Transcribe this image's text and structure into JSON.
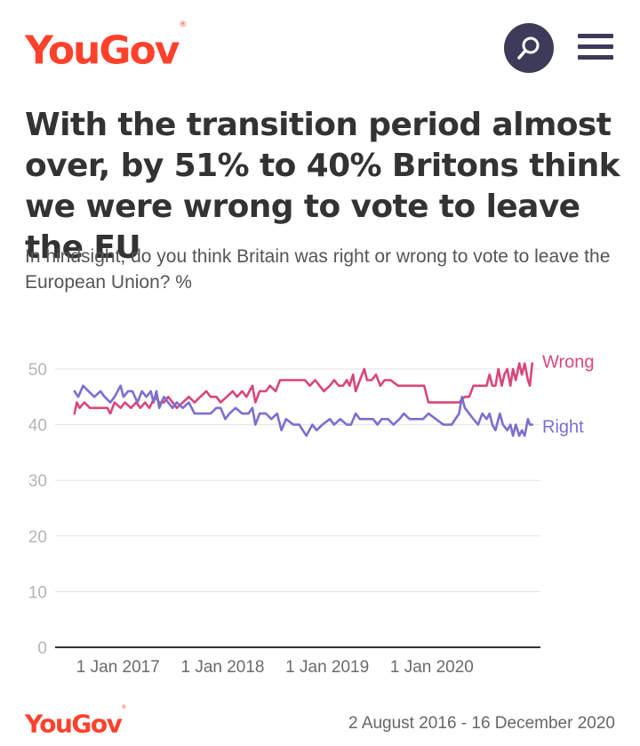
{
  "header": {
    "logo_text": "YouGov",
    "logo_mark": "®",
    "search_icon": "search-icon",
    "menu_icon": "hamburger-menu-icon"
  },
  "title": "With the transition period almost over, by 51% to 40% Britons think we were wrong to vote to leave the EU",
  "subtitle": "In hindsight, do you think Britain was right or wrong to vote to leave the European Union? %",
  "footer": {
    "logo_text": "YouGov",
    "logo_mark": "®",
    "date_range": "2 August 2016 - 16 December 2020"
  },
  "colors": {
    "brand": "#ff412c",
    "icon_bg": "#3e3a5a",
    "wrong": "#d9467b",
    "right": "#7b6fd0"
  },
  "chart_data": {
    "type": "line",
    "ylim": [
      0,
      50
    ],
    "yticks": [
      "0",
      "10",
      "20",
      "30",
      "40",
      "50"
    ],
    "xticks": [
      "1 Jan 2017",
      "1 Jan 2018",
      "1 Jan 2019",
      "1 Jan 2020"
    ],
    "xtick_dates": [
      "2017-01-01",
      "2018-01-01",
      "2019-01-01",
      "2020-01-01"
    ],
    "x_range": [
      "2016-08-02",
      "2020-12-16"
    ],
    "grid": true,
    "series": [
      {
        "name": "Wrong",
        "color": "#d9467b",
        "points": [
          [
            "2016-08-02",
            42
          ],
          [
            "2016-08-10",
            44
          ],
          [
            "2016-08-20",
            43
          ],
          [
            "2016-09-05",
            44
          ],
          [
            "2016-09-25",
            43
          ],
          [
            "2016-10-15",
            43
          ],
          [
            "2016-11-10",
            43
          ],
          [
            "2016-11-25",
            43
          ],
          [
            "2016-12-05",
            42
          ],
          [
            "2016-12-20",
            44
          ],
          [
            "2017-01-10",
            43
          ],
          [
            "2017-01-25",
            44
          ],
          [
            "2017-02-15",
            43
          ],
          [
            "2017-03-05",
            44
          ],
          [
            "2017-03-20",
            43
          ],
          [
            "2017-04-05",
            44
          ],
          [
            "2017-04-20",
            43
          ],
          [
            "2017-05-10",
            45
          ],
          [
            "2017-05-25",
            44
          ],
          [
            "2017-06-10",
            44
          ],
          [
            "2017-06-25",
            45
          ],
          [
            "2017-07-10",
            44
          ],
          [
            "2017-07-25",
            43
          ],
          [
            "2017-08-15",
            44
          ],
          [
            "2017-09-05",
            45
          ],
          [
            "2017-09-25",
            44
          ],
          [
            "2017-10-15",
            45
          ],
          [
            "2017-11-05",
            46
          ],
          [
            "2017-11-20",
            45
          ],
          [
            "2017-12-10",
            45
          ],
          [
            "2017-12-25",
            44
          ],
          [
            "2018-01-15",
            45
          ],
          [
            "2018-02-05",
            46
          ],
          [
            "2018-02-20",
            45
          ],
          [
            "2018-03-10",
            46
          ],
          [
            "2018-03-25",
            45
          ],
          [
            "2018-04-15",
            47
          ],
          [
            "2018-04-25",
            44
          ],
          [
            "2018-05-10",
            46
          ],
          [
            "2018-06-01",
            46
          ],
          [
            "2018-06-15",
            47
          ],
          [
            "2018-07-05",
            46
          ],
          [
            "2018-07-20",
            48
          ],
          [
            "2018-08-05",
            48
          ],
          [
            "2018-08-25",
            48
          ],
          [
            "2018-09-20",
            48
          ],
          [
            "2018-10-15",
            48
          ],
          [
            "2018-11-01",
            47
          ],
          [
            "2018-11-20",
            48
          ],
          [
            "2018-12-05",
            47
          ],
          [
            "2018-12-20",
            46
          ],
          [
            "2019-01-10",
            47
          ],
          [
            "2019-01-25",
            48
          ],
          [
            "2019-02-10",
            47
          ],
          [
            "2019-02-25",
            47
          ],
          [
            "2019-03-10",
            48
          ],
          [
            "2019-03-20",
            47
          ],
          [
            "2019-04-01",
            49
          ],
          [
            "2019-04-10",
            46
          ],
          [
            "2019-04-25",
            48
          ],
          [
            "2019-05-10",
            50
          ],
          [
            "2019-05-20",
            48
          ],
          [
            "2019-06-05",
            48
          ],
          [
            "2019-06-20",
            49
          ],
          [
            "2019-07-05",
            47
          ],
          [
            "2019-07-20",
            48
          ],
          [
            "2019-08-10",
            48
          ],
          [
            "2019-09-05",
            47
          ],
          [
            "2019-09-25",
            47
          ],
          [
            "2019-10-20",
            47
          ],
          [
            "2019-11-15",
            47
          ],
          [
            "2019-12-05",
            47
          ],
          [
            "2019-12-20",
            44
          ],
          [
            "2020-01-25",
            44
          ],
          [
            "2020-02-20",
            44
          ],
          [
            "2020-03-20",
            44
          ],
          [
            "2020-04-05",
            44
          ],
          [
            "2020-04-25",
            45
          ],
          [
            "2020-05-10",
            45
          ],
          [
            "2020-05-25",
            47
          ],
          [
            "2020-06-10",
            47
          ],
          [
            "2020-06-25",
            47
          ],
          [
            "2020-07-10",
            47
          ],
          [
            "2020-07-20",
            49
          ],
          [
            "2020-07-30",
            47
          ],
          [
            "2020-08-10",
            47
          ],
          [
            "2020-08-20",
            50
          ],
          [
            "2020-09-01",
            47
          ],
          [
            "2020-09-10",
            49
          ],
          [
            "2020-09-20",
            50
          ],
          [
            "2020-10-01",
            47
          ],
          [
            "2020-10-10",
            50
          ],
          [
            "2020-10-20",
            48
          ],
          [
            "2020-11-01",
            51
          ],
          [
            "2020-11-10",
            49
          ],
          [
            "2020-11-20",
            51
          ],
          [
            "2020-12-01",
            48
          ],
          [
            "2020-12-08",
            47
          ],
          [
            "2020-12-16",
            51
          ]
        ]
      },
      {
        "name": "Right",
        "color": "#7b6fd0",
        "points": [
          [
            "2016-08-02",
            46
          ],
          [
            "2016-08-15",
            45
          ],
          [
            "2016-09-01",
            47
          ],
          [
            "2016-09-20",
            46
          ],
          [
            "2016-10-10",
            45
          ],
          [
            "2016-11-01",
            46
          ],
          [
            "2016-11-15",
            45
          ],
          [
            "2016-12-05",
            44
          ],
          [
            "2016-12-20",
            45
          ],
          [
            "2017-01-10",
            47
          ],
          [
            "2017-01-20",
            45
          ],
          [
            "2017-02-05",
            46
          ],
          [
            "2017-02-20",
            46
          ],
          [
            "2017-03-10",
            44
          ],
          [
            "2017-03-25",
            46
          ],
          [
            "2017-04-10",
            45
          ],
          [
            "2017-04-25",
            46
          ],
          [
            "2017-05-05",
            44
          ],
          [
            "2017-05-15",
            46
          ],
          [
            "2017-05-25",
            43
          ],
          [
            "2017-06-10",
            45
          ],
          [
            "2017-06-25",
            44
          ],
          [
            "2017-07-10",
            43
          ],
          [
            "2017-07-25",
            44
          ],
          [
            "2017-08-15",
            43
          ],
          [
            "2017-09-05",
            44
          ],
          [
            "2017-09-25",
            42
          ],
          [
            "2017-10-20",
            42
          ],
          [
            "2017-11-20",
            42
          ],
          [
            "2017-12-10",
            43
          ],
          [
            "2017-12-25",
            43
          ],
          [
            "2018-01-10",
            41
          ],
          [
            "2018-01-25",
            42
          ],
          [
            "2018-02-15",
            43
          ],
          [
            "2018-03-10",
            42
          ],
          [
            "2018-04-01",
            42
          ],
          [
            "2018-04-15",
            43
          ],
          [
            "2018-04-25",
            40
          ],
          [
            "2018-05-10",
            42
          ],
          [
            "2018-06-01",
            42
          ],
          [
            "2018-06-20",
            41
          ],
          [
            "2018-07-10",
            42
          ],
          [
            "2018-07-25",
            39
          ],
          [
            "2018-08-10",
            41
          ],
          [
            "2018-09-05",
            40
          ],
          [
            "2018-09-25",
            40
          ],
          [
            "2018-10-20",
            38
          ],
          [
            "2018-11-10",
            40
          ],
          [
            "2018-11-25",
            39
          ],
          [
            "2018-12-15",
            40
          ],
          [
            "2019-01-10",
            41
          ],
          [
            "2019-01-25",
            40
          ],
          [
            "2019-02-15",
            41
          ],
          [
            "2019-03-10",
            40
          ],
          [
            "2019-03-25",
            40
          ],
          [
            "2019-04-10",
            42
          ],
          [
            "2019-04-25",
            41
          ],
          [
            "2019-05-10",
            41
          ],
          [
            "2019-05-25",
            41
          ],
          [
            "2019-06-10",
            41
          ],
          [
            "2019-06-25",
            40
          ],
          [
            "2019-07-10",
            41
          ],
          [
            "2019-08-01",
            41
          ],
          [
            "2019-08-20",
            40
          ],
          [
            "2019-09-10",
            41
          ],
          [
            "2019-09-25",
            42
          ],
          [
            "2019-10-15",
            41
          ],
          [
            "2019-11-01",
            41
          ],
          [
            "2019-12-01",
            41
          ],
          [
            "2019-12-20",
            42
          ],
          [
            "2020-01-15",
            41
          ],
          [
            "2020-02-10",
            40
          ],
          [
            "2020-03-10",
            40
          ],
          [
            "2020-04-05",
            42
          ],
          [
            "2020-04-15",
            45
          ],
          [
            "2020-04-25",
            43
          ],
          [
            "2020-05-10",
            42
          ],
          [
            "2020-05-25",
            41
          ],
          [
            "2020-06-10",
            40
          ],
          [
            "2020-06-25",
            42
          ],
          [
            "2020-07-10",
            41
          ],
          [
            "2020-07-20",
            42
          ],
          [
            "2020-07-30",
            40
          ],
          [
            "2020-08-10",
            39
          ],
          [
            "2020-08-25",
            42
          ],
          [
            "2020-09-05",
            40
          ],
          [
            "2020-09-20",
            39
          ],
          [
            "2020-10-01",
            40
          ],
          [
            "2020-10-10",
            38
          ],
          [
            "2020-10-20",
            40
          ],
          [
            "2020-11-01",
            38
          ],
          [
            "2020-11-10",
            39
          ],
          [
            "2020-11-20",
            38
          ],
          [
            "2020-12-01",
            41
          ],
          [
            "2020-12-08",
            40
          ],
          [
            "2020-12-16",
            40
          ]
        ]
      }
    ]
  }
}
